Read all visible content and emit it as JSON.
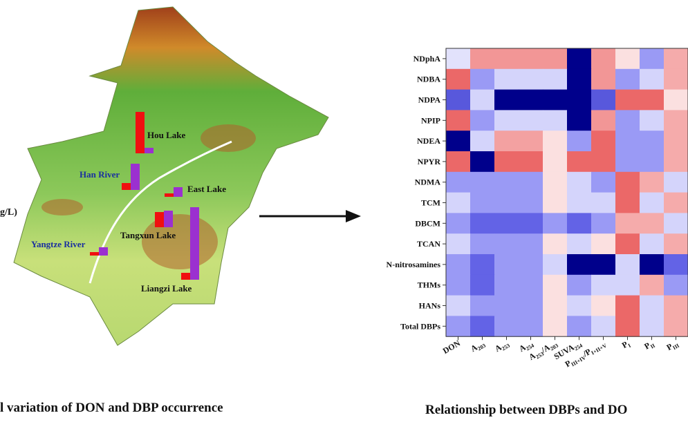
{
  "chart_data": [
    {
      "type": "map-bar",
      "axis_label": "g/L)",
      "caption": "l variation of DON and DBP occurrence",
      "categories": [
        "Hou Lake",
        "Han River",
        "East Lake",
        "Tangxun Lake",
        "Yangtze River",
        "Liangzi Lake"
      ],
      "category_colors": [
        "#111111",
        "#1a2fa0",
        "#111111",
        "#111111",
        "#1a2fa0",
        "#111111"
      ],
      "series": [
        {
          "color": "#f01010",
          "values": [
            60,
            10,
            5,
            22,
            5,
            10
          ]
        },
        {
          "color": "#9b30d0",
          "values": [
            8,
            38,
            14,
            24,
            12,
            105
          ]
        }
      ]
    },
    {
      "type": "heatmap",
      "caption": "Relationship between DBPs and DO",
      "rows": [
        "NDphA",
        "NDBA",
        "NDPA",
        "NPIP",
        "NDEA",
        "NPYR",
        "NDMA",
        "TCM",
        "DBCM",
        "TCAN",
        "N-nitrosamines",
        "THMs",
        "HANs",
        "Total DBPs"
      ],
      "columns": [
        [
          "DON"
        ],
        [
          "A",
          "203"
        ],
        [
          "A",
          "253"
        ],
        [
          "A",
          "254"
        ],
        [
          "A",
          "253",
          "/A",
          "203"
        ],
        [
          "SUVA",
          "254"
        ],
        [
          "P",
          "III+IV",
          "/P",
          "I+II+V"
        ],
        [
          "P",
          "I"
        ],
        [
          "P",
          "II"
        ],
        [
          "P",
          "III"
        ]
      ],
      "zlim": [
        -1,
        1
      ],
      "values": [
        [
          -0.1,
          0.5,
          0.5,
          0.5,
          0.5,
          -1,
          0.5,
          0.15,
          -0.35,
          0.4
        ],
        [
          0.7,
          -0.35,
          -0.15,
          -0.15,
          -0.15,
          -1,
          0.5,
          -0.35,
          -0.15,
          0.4
        ],
        [
          -0.6,
          -0.15,
          -1,
          -1,
          -1,
          -1,
          -0.6,
          0.7,
          0.7,
          0.15
        ],
        [
          0.7,
          -0.35,
          -0.15,
          -0.15,
          -0.15,
          -1,
          0.5,
          -0.35,
          -0.15,
          0.4
        ],
        [
          -1,
          -0.15,
          0.45,
          0.45,
          0.15,
          -0.35,
          0.7,
          -0.35,
          -0.35,
          0.4
        ],
        [
          0.7,
          -1,
          0.7,
          0.7,
          0.15,
          0.7,
          0.7,
          -0.35,
          -0.35,
          0.4
        ],
        [
          -0.35,
          -0.35,
          -0.35,
          -0.35,
          0.15,
          -0.15,
          -0.35,
          0.7,
          0.4,
          -0.15
        ],
        [
          -0.15,
          -0.35,
          -0.35,
          -0.35,
          0.15,
          -0.15,
          -0.15,
          0.7,
          -0.15,
          0.4
        ],
        [
          -0.35,
          -0.55,
          -0.55,
          -0.55,
          -0.35,
          -0.55,
          -0.35,
          0.4,
          0.4,
          -0.15
        ],
        [
          -0.15,
          -0.35,
          -0.35,
          -0.35,
          0.15,
          -0.15,
          0.15,
          0.7,
          -0.15,
          0.4
        ],
        [
          -0.35,
          -0.55,
          -0.35,
          -0.35,
          -0.15,
          -1,
          -1,
          -0.15,
          -1,
          -0.55
        ],
        [
          -0.35,
          -0.55,
          -0.35,
          -0.35,
          0.15,
          -0.35,
          -0.15,
          -0.15,
          0.4,
          -0.35
        ],
        [
          -0.15,
          -0.35,
          -0.35,
          -0.35,
          0.15,
          -0.15,
          0.15,
          0.7,
          -0.15,
          0.4
        ],
        [
          -0.35,
          -0.55,
          -0.35,
          -0.35,
          0.15,
          -0.35,
          -0.15,
          0.7,
          -0.15,
          0.4
        ]
      ]
    }
  ]
}
